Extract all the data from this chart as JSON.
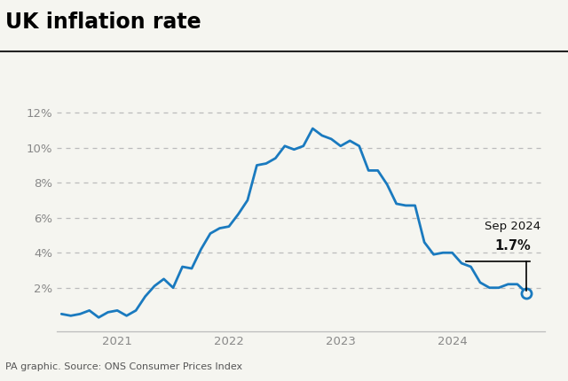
{
  "title": "UK inflation rate",
  "source": "PA graphic. Source: ONS Consumer Prices Index",
  "line_color": "#1a7abf",
  "background_color": "#f5f5f0",
  "annotation_label": "Sep 2024",
  "annotation_value": "1.7%",
  "yticks": [
    2,
    4,
    6,
    8,
    10,
    12
  ],
  "ytick_labels": [
    "2%",
    "4%",
    "6%",
    "8%",
    "10%",
    "12%"
  ],
  "ylim": [
    -0.5,
    13.0
  ],
  "values": [
    0.5,
    0.4,
    0.5,
    0.7,
    0.3,
    0.6,
    0.7,
    0.4,
    0.7,
    1.5,
    2.1,
    2.5,
    2.0,
    3.2,
    3.1,
    4.2,
    5.1,
    5.4,
    5.5,
    6.2,
    7.0,
    9.0,
    9.1,
    9.4,
    10.1,
    9.9,
    10.1,
    11.1,
    10.7,
    10.5,
    10.1,
    10.4,
    10.1,
    8.7,
    8.7,
    7.9,
    6.8,
    6.7,
    6.7,
    4.6,
    3.9,
    4.0,
    4.0,
    3.4,
    3.2,
    2.3,
    2.0,
    2.0,
    2.2,
    2.2,
    1.7
  ],
  "xtick_positions": [
    6,
    18,
    30,
    42
  ],
  "xtick_labels": [
    "2021",
    "2022",
    "2023",
    "2024"
  ],
  "xlim": [
    -0.5,
    52
  ]
}
